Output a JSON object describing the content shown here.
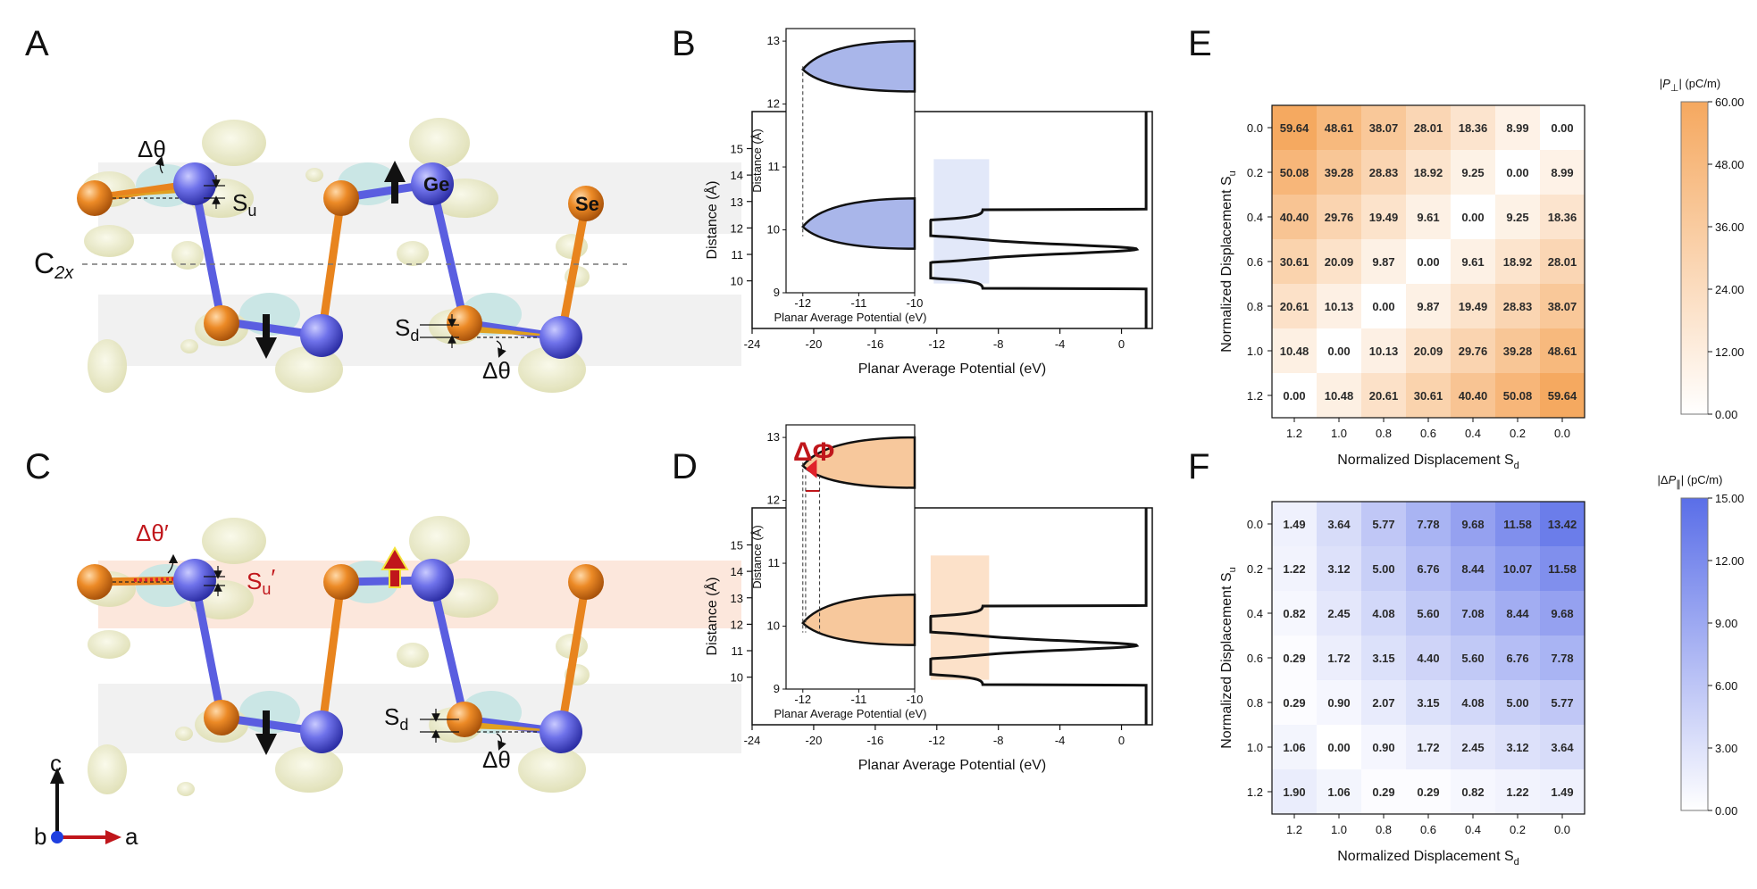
{
  "panel_labels": {
    "A": "A",
    "B": "B",
    "C": "C",
    "D": "D",
    "E": "E",
    "F": "F"
  },
  "structure": {
    "atom_ge": "Ge",
    "atom_se": "Se",
    "c2x": "C",
    "c2x_sub": "2x",
    "delta_theta": "Δθ",
    "delta_theta_prime": "Δθ′",
    "su": "S",
    "su_sub": "u",
    "sd": "S",
    "sd_sub": "d",
    "su_prime": "S",
    "su_prime_sub": "u",
    "su_prime_mark": "′",
    "axis_c": "c",
    "axis_b": "b",
    "axis_a": "a",
    "colors": {
      "ge": "#5a5ee0",
      "se": "#e8841e",
      "iso_yellow": "#eeeec4",
      "iso_cyan": "#c7e6e4",
      "band_gray": "#e7e7e7",
      "band_orange": "#fbe3d6",
      "arrow_red": "#c0161b"
    }
  },
  "potential_plots": [
    {
      "id": "B",
      "type": "line",
      "xlabel": "Planar Average Potential (eV)",
      "ylabel": "Distance (Å)",
      "xlim": [
        -24,
        2
      ],
      "ylim": [
        8.2,
        16.4
      ],
      "x_ticks": [
        "-24",
        "-20",
        "-16",
        "-12",
        "-8",
        "-4",
        "0"
      ],
      "y_ticks": [
        "10",
        "11",
        "12",
        "13",
        "14",
        "15"
      ],
      "inset": {
        "xlabel": "Planar Average Potential (eV)",
        "ylabel": "Distance (Å)",
        "x_ticks": [
          "-12",
          "-11",
          "-10"
        ],
        "y_ticks": [
          "9",
          "10",
          "11",
          "12",
          "13"
        ],
        "fill_color": "#a9b6ea",
        "annotation": ""
      },
      "highlight_color": "#dde4f8"
    },
    {
      "id": "D",
      "type": "line",
      "xlabel": "Planar Average Potential (eV)",
      "ylabel": "Distance (Å)",
      "xlim": [
        -24,
        2
      ],
      "ylim": [
        8.2,
        16.4
      ],
      "x_ticks": [
        "-24",
        "-20",
        "-16",
        "-12",
        "-8",
        "-4",
        "0"
      ],
      "y_ticks": [
        "10",
        "11",
        "12",
        "13",
        "14",
        "15"
      ],
      "inset": {
        "xlabel": "Planar Average Potential (eV)",
        "ylabel": "Distance (Å)",
        "x_ticks": [
          "-12",
          "-11",
          "-10"
        ],
        "y_ticks": [
          "9",
          "10",
          "11",
          "12",
          "13"
        ],
        "fill_color": "#f7c89c",
        "annotation": "ΔΦ"
      },
      "highlight_color": "#fbdcbf"
    }
  ],
  "chart_data": [
    {
      "type": "heatmap",
      "panel": "E",
      "xlabel": "Normalized Displacement S",
      "xlabel_sub": "d",
      "ylabel": "Normalized Displacement S",
      "ylabel_sub": "u",
      "x_categories": [
        "1.2",
        "1.0",
        "0.8",
        "0.6",
        "0.4",
        "0.2",
        "0.0"
      ],
      "y_categories": [
        "0.0",
        "0.2",
        "0.4",
        "0.6",
        "0.8",
        "1.0",
        "1.2"
      ],
      "values": [
        [
          59.64,
          48.61,
          38.07,
          28.01,
          18.36,
          8.99,
          0.0
        ],
        [
          50.08,
          39.28,
          28.83,
          18.92,
          9.25,
          0.0,
          8.99
        ],
        [
          40.4,
          29.76,
          19.49,
          9.61,
          0.0,
          9.25,
          18.36
        ],
        [
          30.61,
          20.09,
          9.87,
          0.0,
          9.61,
          18.92,
          28.01
        ],
        [
          20.61,
          10.13,
          0.0,
          9.87,
          19.49,
          28.83,
          38.07
        ],
        [
          10.48,
          0.0,
          10.13,
          20.09,
          29.76,
          39.28,
          48.61
        ],
        [
          0.0,
          10.48,
          20.61,
          30.61,
          40.4,
          50.08,
          59.64
        ]
      ],
      "colorbar": {
        "title_prefix": "|",
        "title_symbol": "P",
        "title_sub": "⊥",
        "title_suffix": "| (pC/m)",
        "min": 0,
        "max": 60,
        "ticks": [
          "60.00",
          "48.00",
          "36.00",
          "24.00",
          "12.00",
          "0.00"
        ],
        "color_low": "#ffffff",
        "color_high": "#f5a85f"
      }
    },
    {
      "type": "heatmap",
      "panel": "F",
      "xlabel": "Normalized Displacement S",
      "xlabel_sub": "d",
      "ylabel": "Normalized Displacement S",
      "ylabel_sub": "u",
      "x_categories": [
        "1.2",
        "1.0",
        "0.8",
        "0.6",
        "0.4",
        "0.2",
        "0.0"
      ],
      "y_categories": [
        "0.0",
        "0.2",
        "0.4",
        "0.6",
        "0.8",
        "1.0",
        "1.2"
      ],
      "values": [
        [
          1.49,
          3.64,
          5.77,
          7.78,
          9.68,
          11.58,
          13.42
        ],
        [
          1.22,
          3.12,
          5.0,
          6.76,
          8.44,
          10.07,
          11.58
        ],
        [
          0.82,
          2.45,
          4.08,
          5.6,
          7.08,
          8.44,
          9.68
        ],
        [
          0.29,
          1.72,
          3.15,
          4.4,
          5.6,
          6.76,
          7.78
        ],
        [
          0.29,
          0.9,
          2.07,
          3.15,
          4.08,
          5.0,
          5.77
        ],
        [
          1.06,
          0.0,
          0.9,
          1.72,
          2.45,
          3.12,
          3.64
        ],
        [
          1.9,
          1.06,
          0.29,
          0.29,
          0.82,
          1.22,
          1.49
        ]
      ],
      "colorbar": {
        "title_prefix": "|Δ",
        "title_symbol": "P",
        "title_sub": "∥",
        "title_suffix": "| (pC/m)",
        "min": 0,
        "max": 15,
        "ticks": [
          "15.00",
          "12.00",
          "9.00",
          "6.00",
          "3.00",
          "0.00"
        ],
        "color_low": "#ffffff",
        "color_high": "#5a6ee8"
      }
    }
  ]
}
